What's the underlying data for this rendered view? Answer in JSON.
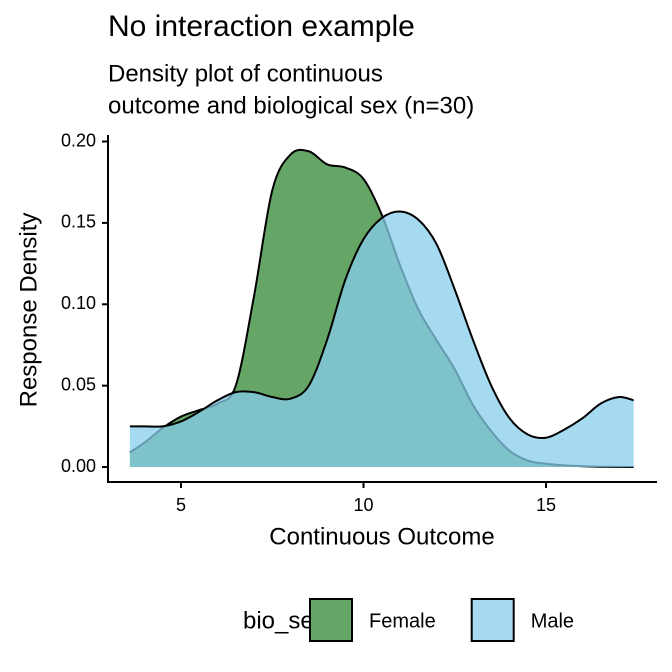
{
  "chart_data": {
    "type": "density",
    "title": "No interaction example",
    "subtitle": [
      "Density plot of continuous",
      "outcome and biological sex (n=30)"
    ],
    "x_label": "Continuous Outcome",
    "y_label": "Response Density",
    "legend_title": "bio_sex",
    "legend": "bottom",
    "x": [
      3.6,
      4,
      4.5,
      5,
      5.5,
      6,
      6.5,
      7,
      7.5,
      8,
      8.5,
      9,
      9.5,
      10,
      10.5,
      11,
      11.5,
      12,
      12.5,
      13,
      13.5,
      14,
      14.5,
      15,
      15.5,
      16,
      16.5,
      17,
      17.4
    ],
    "series": [
      {
        "name": "Female",
        "color": "#65a565",
        "alpha": 1,
        "values": [
          0.009,
          0.015,
          0.024,
          0.031,
          0.035,
          0.039,
          0.05,
          0.105,
          0.17,
          0.192,
          0.194,
          0.186,
          0.184,
          0.177,
          0.155,
          0.124,
          0.097,
          0.078,
          0.06,
          0.038,
          0.022,
          0.01,
          0.004,
          0.002,
          0.001,
          0.0005,
          0.0002,
          0.0001,
          0
        ]
      },
      {
        "name": "Male",
        "color": "#87ceeb",
        "alpha": 0.75,
        "values": [
          0.025,
          0.025,
          0.025,
          0.028,
          0.034,
          0.041,
          0.046,
          0.046,
          0.043,
          0.042,
          0.05,
          0.078,
          0.115,
          0.14,
          0.153,
          0.157,
          0.152,
          0.137,
          0.109,
          0.078,
          0.05,
          0.03,
          0.02,
          0.018,
          0.023,
          0.03,
          0.039,
          0.043,
          0.041
        ]
      }
    ],
    "xlim": [
      3,
      18.04
    ],
    "ylim": [
      -0.0092,
      0.204
    ],
    "xticks": [
      5,
      10,
      15
    ],
    "yticks": [
      {
        "value": 0,
        "label": "0.00"
      },
      0.05,
      {
        "value": 0.1,
        "label": "0.10"
      },
      0.15,
      {
        "value": 0.2,
        "label": "0.20"
      }
    ],
    "grid": false
  }
}
